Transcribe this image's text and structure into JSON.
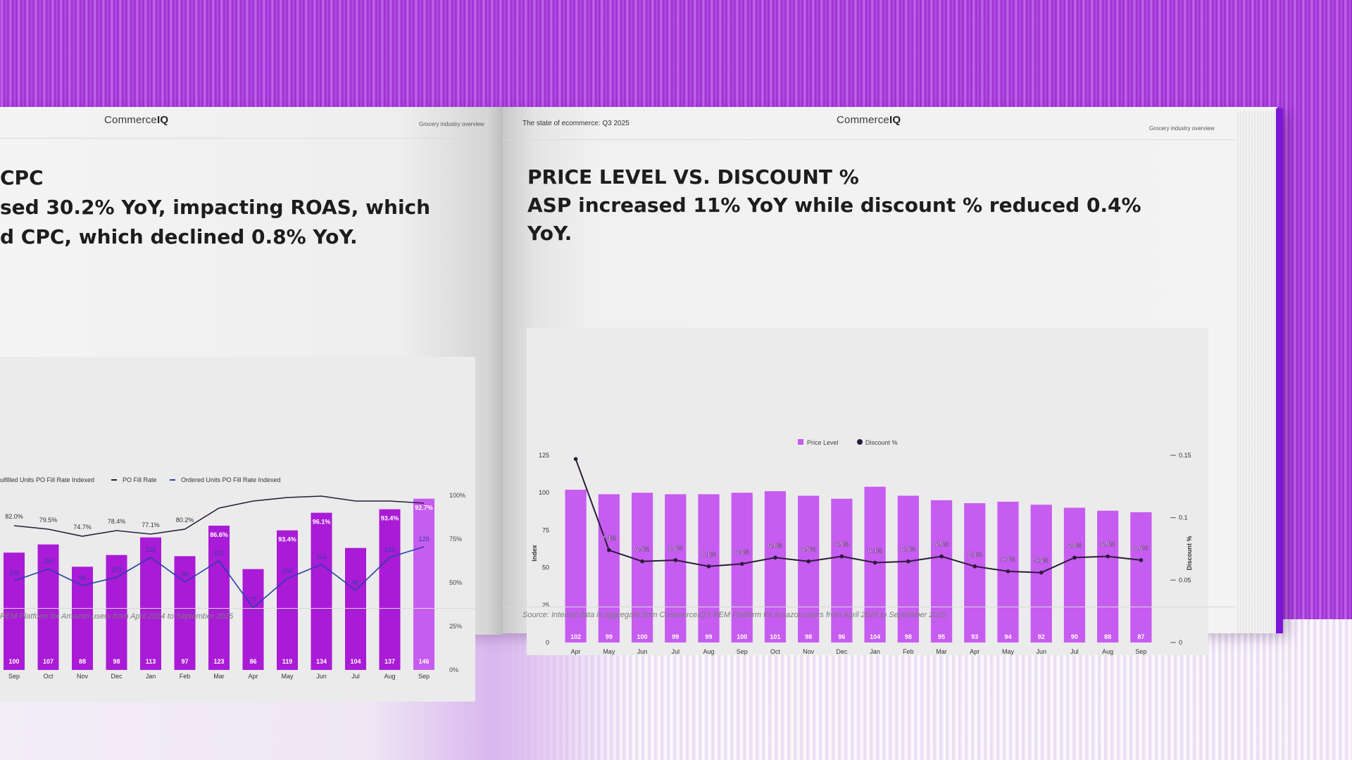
{
  "left_page": {
    "logo_prefix": "Commerce",
    "logo_suffix": "IQ",
    "header_right": "Grocery industry overview",
    "title_lines": [
      "CPC",
      "sed 30.2% YoY, impacting ROAS, which",
      "d CPC, which declined 0.8% YoY."
    ],
    "source": "REM Platform for Amazon users from April 2024 to September 2025"
  },
  "right_page": {
    "header_left": "The state of ecommerce: Q3 2025",
    "logo_prefix": "Commerce",
    "logo_suffix": "IQ",
    "header_right": "Grocery industry overview",
    "title_lines": [
      "PRICE LEVEL VS. DISCOUNT %",
      "ASP increased 11% YoY while discount % reduced 0.4%",
      "YoY."
    ],
    "source": "Source: Internal data in aggregate from CommerceIQ's REM Platform for Amazon users from April 2024 to September 2025"
  },
  "colors": {
    "bar_purple": "#a91bd6",
    "bar_light": "#c65cf0",
    "line_dark": "#2b1b3a",
    "line_blue": "#2e3ea8",
    "cover_purple": "#7b16d6"
  },
  "chart_data": [
    {
      "type": "bar",
      "title": "",
      "legend": [
        "ulfilled Units PO Fill Rate Indexed",
        "PO Fill Rate",
        "Ordered Units PO Fill Rate Indexed"
      ],
      "categories": [
        "Sep",
        "Oct",
        "Nov",
        "Dec",
        "Jan",
        "Feb",
        "Mar",
        "Apr",
        "May",
        "Jun",
        "Jul",
        "Aug",
        "Sep"
      ],
      "series": [
        {
          "name": "ulfilled Units PO Fill Rate Indexed",
          "type": "bar",
          "values": [
            100,
            107,
            88,
            98,
            113,
            97,
            123,
            86,
            119,
            134,
            104,
            137,
            146
          ]
        },
        {
          "name": "PO Fill Rate",
          "type": "line",
          "values": [
            82.0,
            79.5,
            74.7,
            78.4,
            77.1,
            80.2,
            null,
            null,
            null,
            null,
            null,
            null,
            null
          ],
          "labels": [
            "82.0%",
            "79.5%",
            "74.7%",
            "78.4%",
            "77.1%",
            "80.2%",
            "86.6%",
            "",
            "93.4%",
            "96.1%",
            "",
            "93.4%",
            "92.7%"
          ]
        },
        {
          "name": "Ordered Units PO Fill Rate Indexed",
          "type": "line",
          "values": [
            100,
            110,
            96,
            103,
            120,
            99,
            117,
            77,
            102,
            114,
            92,
            120,
            129
          ]
        }
      ],
      "right_axis_ticks": [
        "100%",
        "75%",
        "50%",
        "25%",
        "0%"
      ],
      "ylim_right": [
        0,
        100
      ]
    },
    {
      "type": "bar",
      "title": "",
      "ylabel": "Index",
      "y2label": "Discount %",
      "legend": [
        "Price Level",
        "Discount %"
      ],
      "categories": [
        "Apr",
        "May",
        "Jun",
        "Jul",
        "Aug",
        "Sep",
        "Oct",
        "Nov",
        "Dec",
        "Jan",
        "Feb",
        "Mar",
        "Apr",
        "May",
        "Jun",
        "Jul",
        "Aug",
        "Sep"
      ],
      "series": [
        {
          "name": "Price Level",
          "type": "bar",
          "values": [
            102,
            99,
            100,
            99,
            99,
            100,
            101,
            98,
            96,
            104,
            98,
            95,
            93,
            94,
            92,
            90,
            88,
            87
          ]
        },
        {
          "name": "Discount %",
          "type": "line",
          "values": [
            0.147,
            0.074,
            0.065,
            0.066,
            0.061,
            0.063,
            0.068,
            0.065,
            0.069,
            0.064,
            0.065,
            0.069,
            0.061,
            0.057,
            0.056,
            0.068,
            0.069,
            0.066
          ],
          "labels": [
            "",
            "7.4%",
            "6.5%",
            "6.6%",
            "6.1%",
            "6.3%",
            "6.8%",
            "6.5%",
            "6.9%",
            "6.4%",
            "6.5%",
            "6.9%",
            "6.1%",
            "5.7%",
            "5.6%",
            "6.8%",
            "6.9%",
            "6.6%"
          ]
        }
      ],
      "ylim": [
        0,
        125
      ],
      "y_ticks": [
        "0",
        "25",
        "50",
        "75",
        "100",
        "125"
      ],
      "ylim_right": [
        0,
        0.15
      ],
      "y2_ticks": [
        "0",
        "0.05",
        "0.1",
        "0.15"
      ]
    }
  ]
}
